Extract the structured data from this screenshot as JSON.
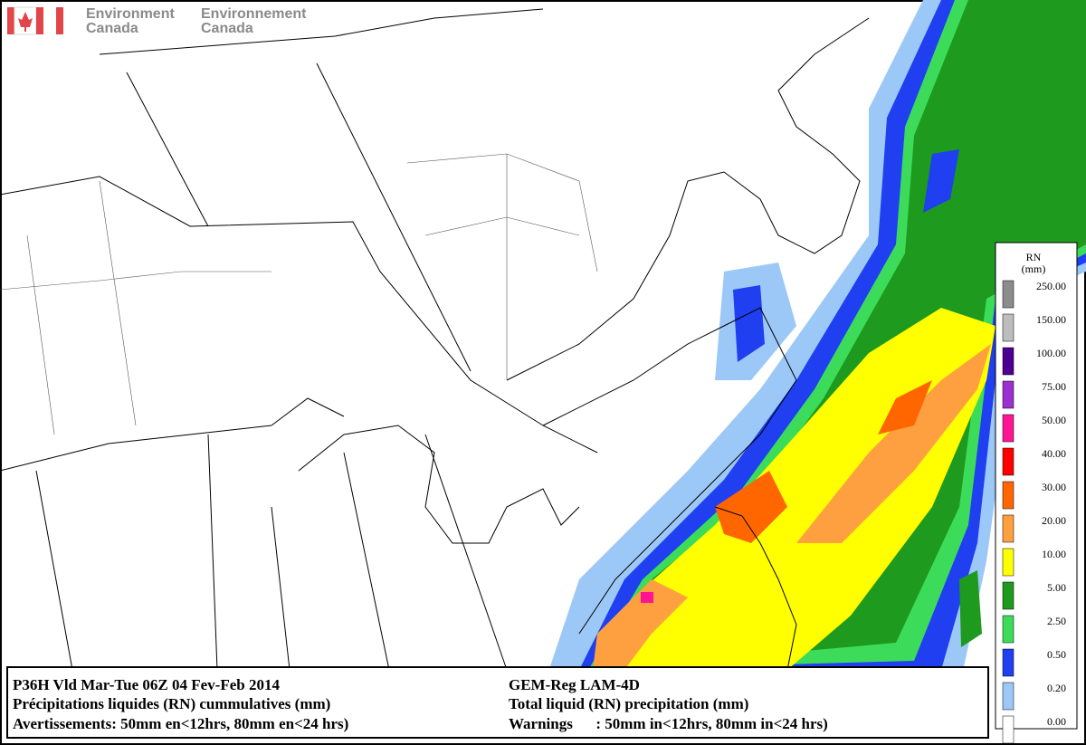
{
  "header": {
    "agency_en": [
      "Environment",
      "Canada"
    ],
    "agency_fr": [
      "Environnement",
      "Canada"
    ]
  },
  "legend": {
    "title": [
      "RN",
      "(mm)"
    ],
    "items": [
      {
        "label": "250.00",
        "color": "#8c8c8c"
      },
      {
        "label": "150.00",
        "color": "#bdbdbd"
      },
      {
        "label": "100.00",
        "color": "#4b0090"
      },
      {
        "label": "75.00",
        "color": "#9b30d0"
      },
      {
        "label": "50.00",
        "color": "#ff1493"
      },
      {
        "label": "40.00",
        "color": "#ff0000"
      },
      {
        "label": "30.00",
        "color": "#ff6600"
      },
      {
        "label": "20.00",
        "color": "#ffa040"
      },
      {
        "label": "10.00",
        "color": "#ffff00"
      },
      {
        "label": "5.00",
        "color": "#1e9a1e"
      },
      {
        "label": "2.50",
        "color": "#3cdc5a"
      },
      {
        "label": "0.50",
        "color": "#1f3ff0"
      },
      {
        "label": "0.20",
        "color": "#9cc8f8"
      },
      {
        "label": "0.00",
        "color": "#ffffff"
      }
    ]
  },
  "footer": {
    "left": [
      "P36H Vld Mar-Tue 06Z 04 Fev-Feb 2014",
      "Précipitations liquides (RN) cummulatives (mm)",
      "Avertissements: 50mm en<12hrs, 80mm en<24 hrs)"
    ],
    "right": [
      "GEM-Reg LAM-4D",
      "Total liquid (RN) precipitation (mm)",
      "Warnings      : 50mm in<12hrs, 80mm in<24 hrs)"
    ]
  }
}
